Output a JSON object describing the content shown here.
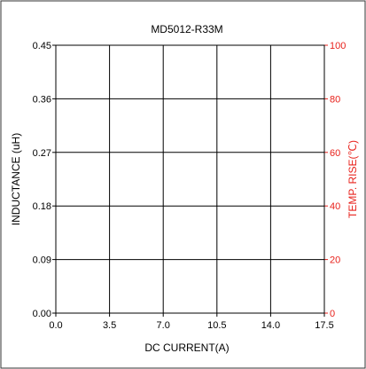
{
  "chart_data": {
    "type": "line",
    "title": "MD5012-R33M",
    "xlabel": "DC CURRENT(A)",
    "ylabel": "INDUCTANCE (uH)",
    "y2label": "TEMP. RISE(℃)",
    "xlim": [
      0,
      17.5
    ],
    "ylim": [
      0,
      0.45
    ],
    "y2lim": [
      0,
      100
    ],
    "x_ticks": [
      "0.0",
      "3.5",
      "7.0",
      "10.5",
      "14.0",
      "17.5"
    ],
    "y_ticks": [
      "0.00",
      "0.09",
      "0.18",
      "0.27",
      "0.36",
      "0.45"
    ],
    "y2_ticks": [
      "0",
      "20",
      "40",
      "60",
      "80",
      "100"
    ],
    "grid": true,
    "series": []
  },
  "colors": {
    "axis": "#000000",
    "secondary_axis": "#e8211b",
    "border": "#333333"
  }
}
